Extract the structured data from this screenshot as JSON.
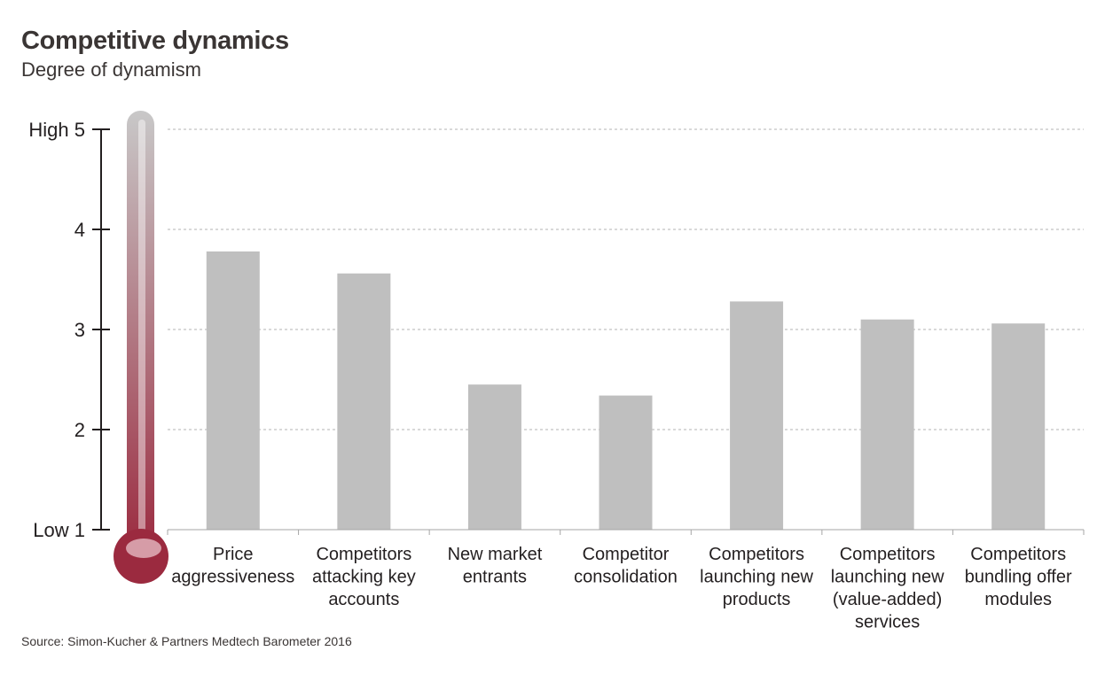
{
  "title": "Competitive dynamics",
  "subtitle": "Degree of dynamism",
  "source": "Source: Simon-Kucher & Partners Medtech Barometer 2016",
  "colors": {
    "bar": "#bfbfbf",
    "grid": "#b3b3b3",
    "axis": "#231f20",
    "thermo_top": "#c8c8c8",
    "thermo_bottom": "#9b2a3f"
  },
  "chart_data": {
    "type": "bar",
    "title": "Competitive dynamics",
    "subtitle": "Degree of dynamism",
    "ylabel": "",
    "xlabel": "",
    "ylim": [
      1,
      5
    ],
    "grid": true,
    "yticks": [
      {
        "value": 1,
        "label": "Low 1"
      },
      {
        "value": 2,
        "label": "2"
      },
      {
        "value": 3,
        "label": "3"
      },
      {
        "value": 4,
        "label": "4"
      },
      {
        "value": 5,
        "label": "High 5"
      }
    ],
    "categories": [
      [
        "Price",
        "aggressiveness"
      ],
      [
        "Competitors",
        "attacking key",
        "accounts"
      ],
      [
        "New market",
        "entrants"
      ],
      [
        "Competitor",
        "consolidation"
      ],
      [
        "Competitors",
        "launching new",
        "products"
      ],
      [
        "Competitors",
        "launching new",
        "(value-added)",
        "services"
      ],
      [
        "Competitors",
        "bundling offer",
        "modules"
      ]
    ],
    "values": [
      3.78,
      3.56,
      2.45,
      2.34,
      3.28,
      3.1,
      3.06
    ]
  }
}
